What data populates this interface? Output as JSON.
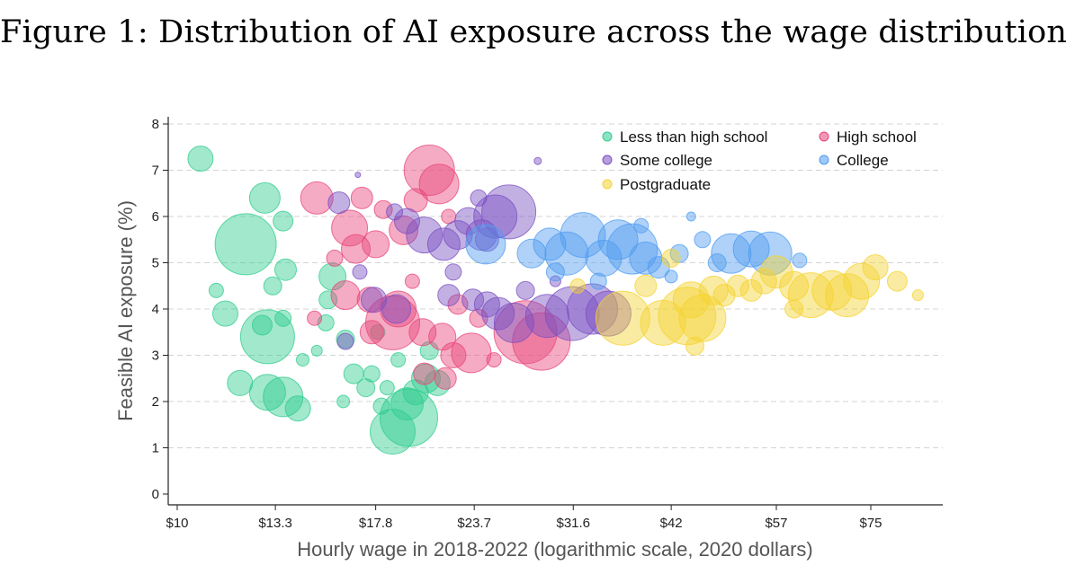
{
  "figure": {
    "title": "Figure 1: Distribution of AI exposure across the wage distribution"
  },
  "chart_data": {
    "type": "scatter",
    "xlabel": "Hourly wage in 2018-2022 (logarithmic scale, 2020 dollars)",
    "ylabel": "Feasible AI exposure (%)",
    "x_scale": "log",
    "xlim": [
      10,
      90
    ],
    "ylim": [
      0,
      8
    ],
    "x_ticks": [
      10,
      13.3,
      17.8,
      23.7,
      31.6,
      42,
      57,
      75
    ],
    "x_tick_labels": [
      "$10",
      "$13.3",
      "$17.8",
      "$23.7",
      "$31.6",
      "$42",
      "$57",
      "$75"
    ],
    "y_ticks": [
      0,
      1,
      2,
      3,
      4,
      5,
      6,
      7,
      8
    ],
    "y_tick_labels": [
      "0",
      "1",
      "2",
      "3",
      "4",
      "5",
      "6",
      "7",
      "8"
    ],
    "grid": "horizontal-dashed",
    "legend_position": "top-right",
    "series": [
      {
        "name": "Less than high school",
        "color": "#2ecc8f",
        "points": [
          [
            10.7,
            7.25,
            14
          ],
          [
            12.9,
            6.4,
            17
          ],
          [
            12.2,
            5.4,
            34
          ],
          [
            13.6,
            5.9,
            11
          ],
          [
            13.7,
            4.85,
            12
          ],
          [
            13.2,
            4.5,
            10
          ],
          [
            11.5,
            3.9,
            14
          ],
          [
            13.0,
            3.4,
            30
          ],
          [
            12.8,
            3.65,
            11
          ],
          [
            13.6,
            3.8,
            9
          ],
          [
            13.0,
            2.2,
            20
          ],
          [
            13.6,
            2.1,
            22
          ],
          [
            14.2,
            1.85,
            14
          ],
          [
            12.0,
            2.4,
            14
          ],
          [
            15.7,
            4.7,
            15
          ],
          [
            15.4,
            3.7,
            9
          ],
          [
            15.5,
            4.2,
            10
          ],
          [
            16.3,
            3.35,
            10
          ],
          [
            16.7,
            2.6,
            11
          ],
          [
            17.3,
            2.3,
            10
          ],
          [
            18.7,
            1.35,
            25
          ],
          [
            19.6,
            1.65,
            32
          ],
          [
            19.5,
            1.95,
            18
          ],
          [
            20.0,
            2.2,
            14
          ],
          [
            20.6,
            2.5,
            16
          ],
          [
            21.3,
            2.4,
            14
          ],
          [
            17.6,
            2.6,
            9
          ],
          [
            19.0,
            2.9,
            8
          ],
          [
            18.4,
            2.3,
            8
          ],
          [
            15.0,
            3.1,
            6
          ],
          [
            11.2,
            4.4,
            8
          ],
          [
            14.4,
            2.9,
            7
          ],
          [
            16.2,
            2.0,
            7
          ],
          [
            18.1,
            1.9,
            9
          ],
          [
            20.8,
            3.1,
            10
          ],
          [
            17.9,
            3.5,
            8
          ]
        ]
      },
      {
        "name": "High school",
        "color": "#e8447a",
        "points": [
          [
            15.0,
            6.4,
            18
          ],
          [
            17.1,
            6.4,
            12
          ],
          [
            16.5,
            5.75,
            20
          ],
          [
            16.8,
            5.3,
            16
          ],
          [
            17.8,
            5.4,
            15
          ],
          [
            19.3,
            5.7,
            16
          ],
          [
            20.8,
            7.0,
            28
          ],
          [
            21.4,
            6.7,
            22
          ],
          [
            20.0,
            6.35,
            13
          ],
          [
            16.3,
            4.3,
            16
          ],
          [
            17.5,
            4.2,
            14
          ],
          [
            18.7,
            3.7,
            30
          ],
          [
            19.0,
            4.0,
            20
          ],
          [
            17.6,
            3.5,
            13
          ],
          [
            20.4,
            3.5,
            15
          ],
          [
            21.6,
            3.4,
            15
          ],
          [
            22.3,
            3.0,
            14
          ],
          [
            23.5,
            3.05,
            22
          ],
          [
            20.5,
            2.6,
            12
          ],
          [
            21.8,
            2.5,
            12
          ],
          [
            27.5,
            3.5,
            35
          ],
          [
            28.8,
            3.3,
            32
          ],
          [
            24.0,
            3.8,
            10
          ],
          [
            22.6,
            4.1,
            11
          ],
          [
            15.8,
            5.1,
            9
          ],
          [
            19.8,
            4.6,
            8
          ],
          [
            18.2,
            6.15,
            10
          ],
          [
            22.0,
            6.0,
            8
          ],
          [
            14.9,
            3.8,
            8
          ],
          [
            25.1,
            2.9,
            8
          ]
        ]
      },
      {
        "name": "Some college",
        "color": "#7a4fc2",
        "points": [
          [
            16.0,
            6.3,
            12
          ],
          [
            19.5,
            5.9,
            14
          ],
          [
            20.5,
            5.6,
            20
          ],
          [
            21.7,
            5.4,
            18
          ],
          [
            22.6,
            5.6,
            16
          ],
          [
            23.3,
            5.9,
            15
          ],
          [
            24.2,
            5.6,
            17
          ],
          [
            25.2,
            6.0,
            24
          ],
          [
            26.2,
            6.1,
            30
          ],
          [
            24.6,
            5.5,
            13
          ],
          [
            17.7,
            4.2,
            14
          ],
          [
            18.9,
            4.0,
            16
          ],
          [
            22.0,
            4.3,
            12
          ],
          [
            23.6,
            4.2,
            12
          ],
          [
            24.6,
            4.1,
            14
          ],
          [
            25.4,
            3.9,
            18
          ],
          [
            26.6,
            3.7,
            22
          ],
          [
            29.3,
            3.85,
            24
          ],
          [
            31.5,
            3.9,
            30
          ],
          [
            33.4,
            4.0,
            28
          ],
          [
            35.0,
            3.9,
            25
          ],
          [
            22.3,
            4.8,
            9
          ],
          [
            27.5,
            4.4,
            10
          ],
          [
            17.0,
            4.8,
            8
          ],
          [
            24.0,
            6.4,
            9
          ],
          [
            18.8,
            6.1,
            9
          ],
          [
            28.5,
            7.2,
            4
          ],
          [
            30.0,
            4.6,
            6
          ],
          [
            16.9,
            6.9,
            3
          ],
          [
            16.3,
            3.3,
            9
          ]
        ]
      },
      {
        "name": "College",
        "color": "#4f9cf0",
        "points": [
          [
            24.5,
            5.4,
            22
          ],
          [
            28.0,
            5.2,
            16
          ],
          [
            29.5,
            5.4,
            18
          ],
          [
            31.0,
            5.2,
            24
          ],
          [
            32.5,
            5.6,
            25
          ],
          [
            34.5,
            5.1,
            20
          ],
          [
            36.0,
            5.5,
            22
          ],
          [
            37.5,
            5.3,
            28
          ],
          [
            39.0,
            5.1,
            18
          ],
          [
            40.5,
            4.9,
            12
          ],
          [
            43.0,
            5.2,
            10
          ],
          [
            46.0,
            5.5,
            9
          ],
          [
            50.0,
            5.2,
            22
          ],
          [
            53.0,
            5.3,
            20
          ],
          [
            56.0,
            5.2,
            24
          ],
          [
            61.0,
            5.05,
            8
          ],
          [
            30.0,
            4.8,
            10
          ],
          [
            34.0,
            4.6,
            9
          ],
          [
            44.5,
            6.0,
            5
          ],
          [
            48.0,
            5.0,
            10
          ],
          [
            38.5,
            5.8,
            8
          ],
          [
            42.0,
            4.7,
            7
          ]
        ]
      },
      {
        "name": "Postgraduate",
        "color": "#f5d330",
        "points": [
          [
            36.5,
            3.8,
            30
          ],
          [
            41.0,
            3.7,
            25
          ],
          [
            44.0,
            3.85,
            32
          ],
          [
            46.0,
            3.8,
            26
          ],
          [
            44.5,
            4.2,
            20
          ],
          [
            47.5,
            4.4,
            16
          ],
          [
            49.0,
            4.3,
            12
          ],
          [
            51.0,
            4.5,
            12
          ],
          [
            53.0,
            4.4,
            12
          ],
          [
            55.0,
            4.6,
            14
          ],
          [
            57.0,
            4.8,
            18
          ],
          [
            60.0,
            4.5,
            16
          ],
          [
            63.0,
            4.3,
            25
          ],
          [
            67.0,
            4.4,
            22
          ],
          [
            70.0,
            4.3,
            24
          ],
          [
            73.0,
            4.6,
            20
          ],
          [
            76.0,
            4.9,
            14
          ],
          [
            81.0,
            4.6,
            11
          ],
          [
            86.0,
            4.3,
            6
          ],
          [
            42.0,
            5.1,
            10
          ],
          [
            39.0,
            4.5,
            12
          ],
          [
            32.0,
            4.5,
            8
          ],
          [
            60.0,
            4.0,
            10
          ],
          [
            45.0,
            3.2,
            10
          ]
        ]
      }
    ]
  }
}
